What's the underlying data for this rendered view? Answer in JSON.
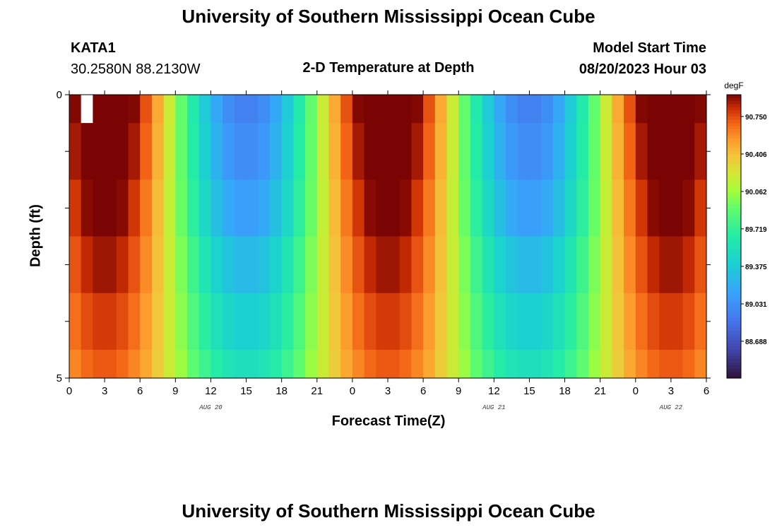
{
  "header": {
    "title": "University of Southern Mississippi Ocean Cube",
    "station": "KATA1",
    "coords": "30.2580N  88.2130W",
    "chart_title": "2-D Temperature at Depth",
    "model_start_label": "Model Start Time",
    "model_start_value": "08/20/2023 Hour 03"
  },
  "footer": {
    "title": "University of Southern Mississippi Ocean Cube"
  },
  "chart_data": {
    "type": "heatmap",
    "title": "2-D Temperature at Depth",
    "xlabel": "Forecast Time(Z)",
    "ylabel": "Depth (ft)",
    "x_tick_labels": [
      "0",
      "3",
      "6",
      "9",
      "12",
      "15",
      "18",
      "21",
      "0",
      "3",
      "6",
      "9",
      "12",
      "15",
      "18",
      "21",
      "0",
      "3",
      "6"
    ],
    "x_range_hours": [
      0,
      54
    ],
    "date_labels": [
      {
        "text": "AUG 20",
        "hour": 12
      },
      {
        "text": "AUG 21",
        "hour": 36
      },
      {
        "text": "AUG 22",
        "hour": 51
      }
    ],
    "y_tick_labels": [
      "0",
      "5"
    ],
    "y_range": [
      0,
      5
    ],
    "colorbar": {
      "unit": "degF",
      "min": 88.35,
      "max": 90.95,
      "labels": [
        "90.750",
        "90.406",
        "90.062",
        "89.719",
        "89.375",
        "89.031",
        "88.688"
      ]
    },
    "depth_layers": [
      {
        "depth": [
          0,
          0.5
        ],
        "base": 90.05,
        "amp": 1.12
      },
      {
        "depth": [
          0.5,
          1.5
        ],
        "base": 90.05,
        "amp": 1.05
      },
      {
        "depth": [
          1.5,
          2.5
        ],
        "base": 90.05,
        "amp": 0.95
      },
      {
        "depth": [
          2.5,
          3.5
        ],
        "base": 90.08,
        "amp": 0.82
      },
      {
        "depth": [
          3.5,
          4.5
        ],
        "base": 90.1,
        "amp": 0.7
      },
      {
        "depth": [
          4.5,
          5.0
        ],
        "base": 90.12,
        "amp": 0.6
      }
    ],
    "cycle_period_hours": 24,
    "peak_hour": 3,
    "missing_cells": [
      {
        "hour": 1,
        "depth": [
          0,
          0.5
        ]
      }
    ]
  }
}
